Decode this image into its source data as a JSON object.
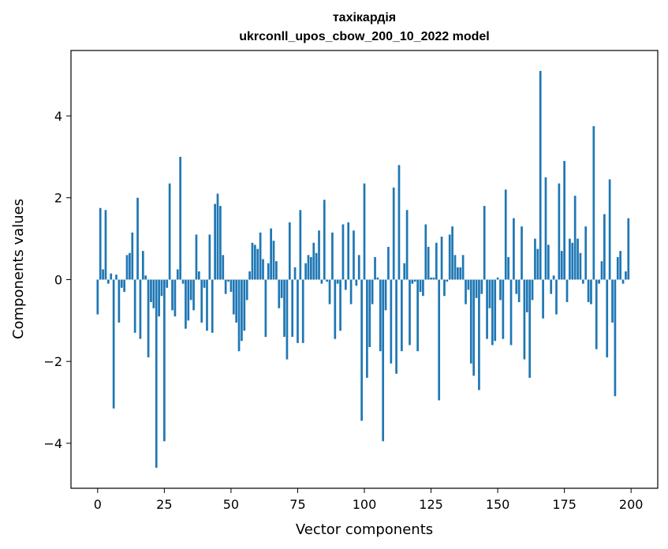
{
  "chart_data": {
    "type": "bar",
    "title": "тахікардія",
    "subtitle": "ukrconll_upos_cbow_200_10_2022 model",
    "xlabel": "Vector components",
    "ylabel": "Components values",
    "xlim": [
      -10,
      210
    ],
    "ylim": [
      -5.1,
      5.6
    ],
    "xticks": [
      0,
      25,
      50,
      75,
      100,
      125,
      150,
      175,
      200
    ],
    "yticks": [
      -4,
      -2,
      0,
      2,
      4
    ],
    "ytick_labels": [
      "−4",
      "−2",
      "0",
      "2",
      "4"
    ],
    "bar_color": "#1f77b4",
    "values": [
      -0.85,
      1.75,
      0.25,
      1.7,
      -0.1,
      0.15,
      -3.15,
      0.12,
      -1.05,
      -0.2,
      -0.3,
      0.6,
      0.65,
      1.15,
      -1.3,
      2.0,
      -1.45,
      0.7,
      0.1,
      -1.9,
      -0.55,
      -0.7,
      -4.6,
      -0.9,
      -0.4,
      -3.95,
      -0.2,
      2.35,
      -0.75,
      -0.9,
      0.25,
      3.0,
      -0.1,
      -1.2,
      -1.0,
      -0.5,
      -0.75,
      1.1,
      0.2,
      -1.05,
      -0.2,
      -1.25,
      1.1,
      -1.3,
      1.85,
      2.1,
      1.8,
      0.6,
      -0.35,
      -0.05,
      -0.3,
      -0.85,
      -1.05,
      -1.75,
      -1.5,
      -1.25,
      -0.5,
      0.2,
      0.9,
      0.85,
      0.75,
      1.15,
      0.5,
      -1.4,
      0.4,
      1.25,
      0.95,
      0.45,
      -0.7,
      -0.45,
      -1.4,
      -1.95,
      1.4,
      -1.4,
      0.3,
      -1.55,
      1.7,
      -1.55,
      0.4,
      0.6,
      0.55,
      0.9,
      0.65,
      1.2,
      -0.1,
      1.95,
      -0.05,
      -0.6,
      1.15,
      -1.45,
      -0.1,
      -1.25,
      1.35,
      -0.25,
      1.4,
      -0.6,
      1.2,
      -0.15,
      0.6,
      -3.45,
      2.35,
      -2.4,
      -1.65,
      -0.6,
      0.55,
      0.05,
      -1.75,
      -3.95,
      -0.75,
      0.8,
      -2.05,
      2.25,
      -2.3,
      2.8,
      -1.75,
      0.4,
      1.7,
      -1.6,
      -0.1,
      -0.05,
      -1.75,
      -0.3,
      -0.4,
      1.35,
      0.8,
      0.05,
      0.05,
      0.9,
      -2.95,
      1.05,
      -0.4,
      -0.05,
      1.1,
      1.3,
      0.6,
      0.3,
      0.3,
      0.6,
      -0.6,
      -0.25,
      -2.05,
      -2.35,
      -0.45,
      -2.7,
      -0.35,
      1.8,
      -1.45,
      -0.7,
      -1.6,
      -1.5,
      0.05,
      -0.5,
      -1.45,
      2.2,
      0.55,
      -1.6,
      1.5,
      -0.35,
      -0.55,
      1.3,
      -1.95,
      -0.8,
      -2.4,
      -0.5,
      1.0,
      0.75,
      5.1,
      -0.95,
      2.5,
      0.85,
      -0.35,
      0.1,
      -0.85,
      2.35,
      0.7,
      2.9,
      -0.55,
      1.0,
      0.9,
      2.05,
      1.0,
      0.65,
      -0.1,
      1.3,
      -0.55,
      -0.6,
      3.75,
      -1.7,
      -0.1,
      0.45,
      1.6,
      -1.9,
      2.45,
      -1.05,
      -2.85,
      0.55,
      0.7,
      -0.1,
      0.2,
      1.5
    ]
  }
}
